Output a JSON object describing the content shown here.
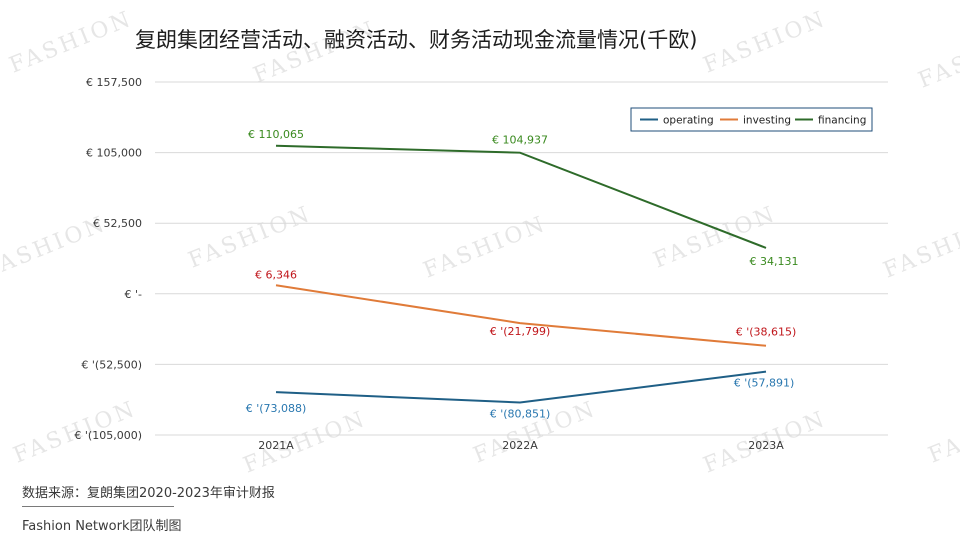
{
  "title": "复朗集团经营活动、融资活动、财务活动现金流量情况(千欧)",
  "source_note": "数据来源：复朗集团2020-2023年审计财报",
  "credit": "Fashion Network团队制图",
  "watermark_text": "FASHION",
  "colors": {
    "operating": "#1f5f86",
    "investing": "#e07b39",
    "financing": "#2e6b2a",
    "label_operating": "#2a78b0",
    "label_investing": "#c0161b",
    "label_financing": "#3a8a1f",
    "grid": "#d9d9d9",
    "axis_text": "#3a3a3a"
  },
  "chart_data": {
    "type": "line",
    "title": "复朗集团经营活动、融资活动、财务活动现金流量情况(千欧)",
    "categories": [
      "2021A",
      "2022A",
      "2023A"
    ],
    "ylim": [
      -105000,
      157500
    ],
    "yticks": [
      157500,
      105000,
      52500,
      0,
      -52500,
      -105000
    ],
    "ytick_labels": [
      "€ 157,500",
      "€ 105,000",
      "€ 52,500",
      "€ '-",
      "€ '(52,500)",
      "€ '(105,000)"
    ],
    "grid": true,
    "legend_position": "top-right",
    "series": [
      {
        "name": "operating",
        "values": [
          -73088,
          -80851,
          -57891
        ],
        "labels": [
          "€ '(73,088)",
          "€ '(80,851)",
          "€ '(57,891)"
        ]
      },
      {
        "name": "investing",
        "values": [
          6346,
          -21799,
          -38615
        ],
        "labels": [
          "€ 6,346",
          "€ '(21,799)",
          "€ '(38,615)"
        ]
      },
      {
        "name": "financing",
        "values": [
          110065,
          104937,
          34131
        ],
        "labels": [
          "€ 110,065",
          "€ 104,937",
          "€ 34,131"
        ]
      }
    ]
  }
}
